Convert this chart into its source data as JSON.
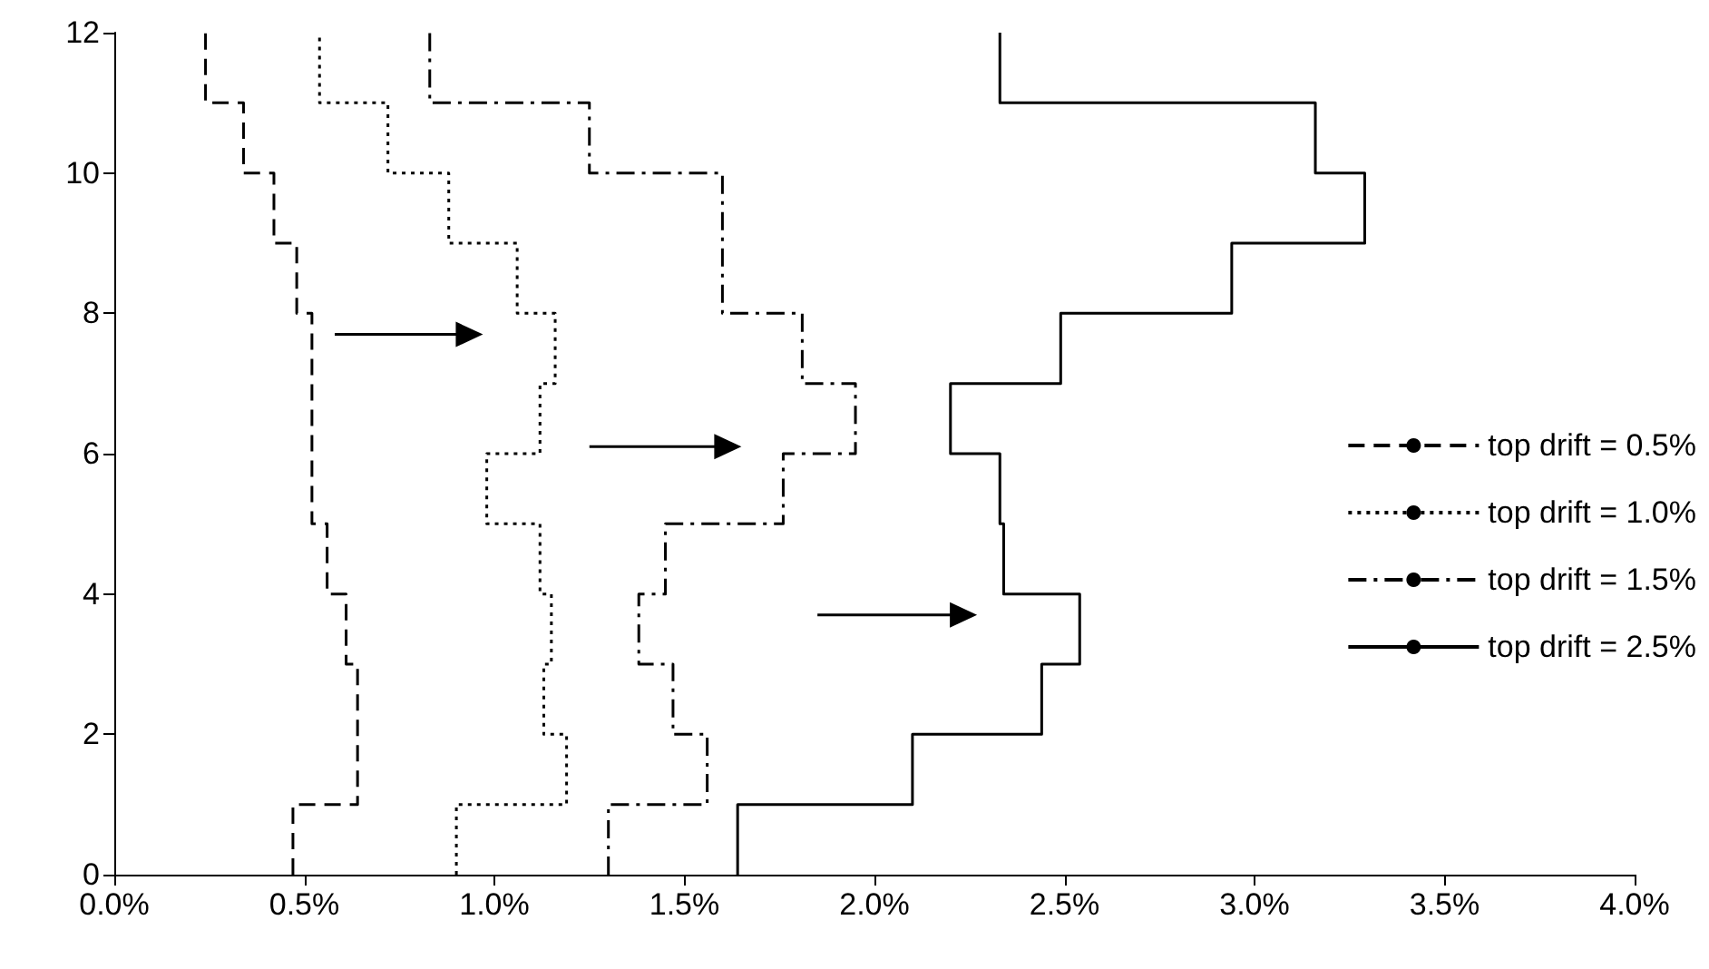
{
  "chart_data": {
    "type": "line",
    "xlim": [
      0,
      4
    ],
    "ylim": [
      0,
      12
    ],
    "xticks": [
      {
        "value": 0,
        "label": "0.0%"
      },
      {
        "value": 0.5,
        "label": "0.5%"
      },
      {
        "value": 1,
        "label": "1.0%"
      },
      {
        "value": 1.5,
        "label": "1.5%"
      },
      {
        "value": 2,
        "label": "2.0%"
      },
      {
        "value": 2.5,
        "label": "2.5%"
      },
      {
        "value": 3,
        "label": "3.0%"
      },
      {
        "value": 3.5,
        "label": "3.5%"
      },
      {
        "value": 4,
        "label": "4.0%"
      }
    ],
    "yticks": [
      0,
      2,
      4,
      6,
      8,
      10,
      12
    ],
    "grid": false,
    "legend": "right",
    "marker": "none",
    "series": [
      {
        "name": "top drift = 0.5%",
        "color": "#000000",
        "line_style": "dashed",
        "x": [
          0.47,
          0.47,
          0.64,
          0.64,
          0.64,
          0.64,
          0.61,
          0.61,
          0.56,
          0.56,
          0.52,
          0.52,
          0.52,
          0.52,
          0.52,
          0.52,
          0.48,
          0.48,
          0.42,
          0.42,
          0.34,
          0.34,
          0.24,
          0.24
        ],
        "values": [
          0,
          1,
          1,
          2,
          2,
          3,
          3,
          4,
          4,
          5,
          5,
          6,
          6,
          7,
          7,
          8,
          8,
          9,
          9,
          10,
          10,
          11,
          11,
          12
        ]
      },
      {
        "name": "top drift = 1.0%",
        "color": "#000000",
        "line_style": "dotted",
        "x": [
          0.9,
          0.9,
          1.19,
          1.19,
          1.13,
          1.13,
          1.15,
          1.15,
          1.12,
          1.12,
          0.98,
          0.98,
          1.12,
          1.12,
          1.16,
          1.16,
          1.06,
          1.06,
          0.88,
          0.88,
          0.72,
          0.72,
          0.54,
          0.54
        ],
        "values": [
          0,
          1,
          1,
          2,
          2,
          3,
          3,
          4,
          4,
          5,
          5,
          6,
          6,
          7,
          7,
          8,
          8,
          9,
          9,
          10,
          10,
          11,
          11,
          12
        ]
      },
      {
        "name": "top drift = 1.5%",
        "color": "#000000",
        "line_style": "dashdot",
        "x": [
          1.3,
          1.3,
          1.56,
          1.56,
          1.47,
          1.47,
          1.38,
          1.38,
          1.45,
          1.45,
          1.76,
          1.76,
          1.95,
          1.95,
          1.81,
          1.81,
          1.6,
          1.6,
          1.6,
          1.6,
          1.25,
          1.25,
          0.83,
          0.83
        ],
        "values": [
          0,
          1,
          1,
          2,
          2,
          3,
          3,
          4,
          4,
          5,
          5,
          6,
          6,
          7,
          7,
          8,
          8,
          9,
          9,
          10,
          10,
          11,
          11,
          12
        ]
      },
      {
        "name": "top drift = 2.5%",
        "color": "#000000",
        "line_style": "solid",
        "x": [
          1.64,
          1.64,
          2.1,
          2.1,
          2.44,
          2.44,
          2.54,
          2.54,
          2.34,
          2.34,
          2.33,
          2.33,
          2.2,
          2.2,
          2.49,
          2.49,
          2.94,
          2.94,
          3.29,
          3.29,
          3.16,
          3.16,
          2.33,
          2.33
        ],
        "values": [
          0,
          1,
          1,
          2,
          2,
          3,
          3,
          4,
          4,
          5,
          5,
          6,
          6,
          7,
          7,
          8,
          8,
          9,
          9,
          10,
          10,
          11,
          11,
          12
        ]
      }
    ]
  }
}
